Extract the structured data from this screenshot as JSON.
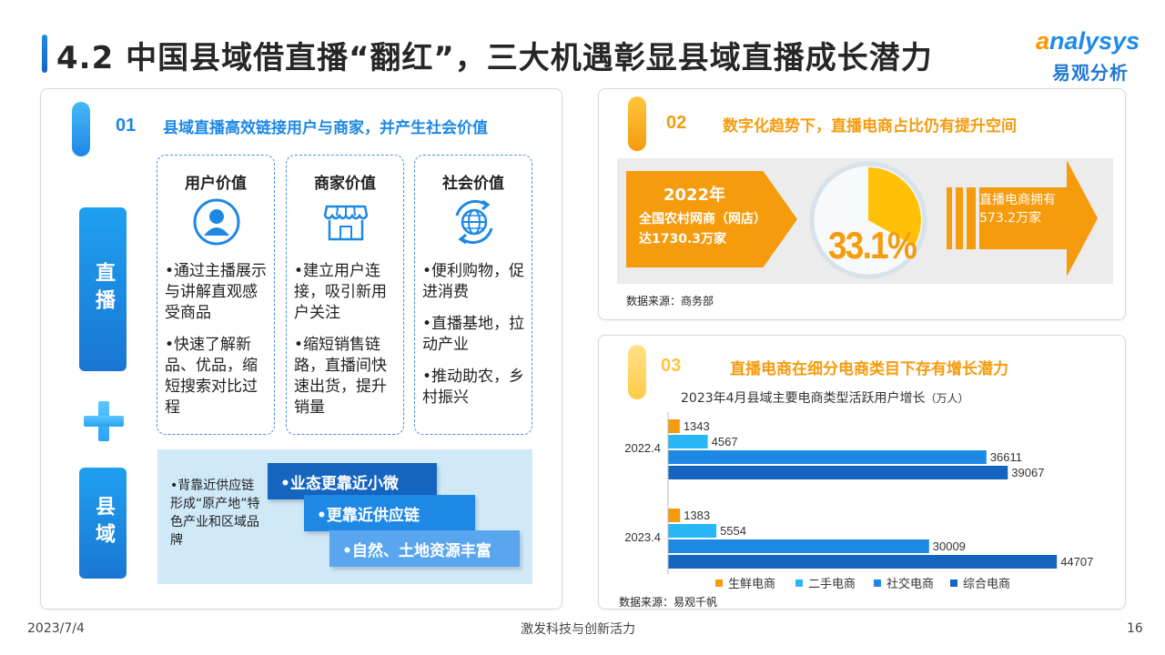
{
  "header": {
    "title": "4.2 中国县域借直播“翻红”，三大机遇彰显县域直播成长潜力",
    "brand_en_prefix": "a",
    "brand_en_rest": "nalysys",
    "brand_cn": "易观分析"
  },
  "section1": {
    "num": "01",
    "title": "县域直播高效链接用户与商家，并产生社会价值",
    "left_label_top": "直播",
    "left_label_bottom": "县域",
    "cards": [
      {
        "title": "用户价值",
        "icon": "user-icon",
        "items": [
          "•通过主播展示与讲解直观感受商品",
          "•快速了解新品、优品，缩短搜索对比过程"
        ]
      },
      {
        "title": "商家价值",
        "icon": "store-icon",
        "items": [
          "•建立用户连接，吸引新用户关注",
          "•缩短销售链路，直播间快速出货，提升销量"
        ]
      },
      {
        "title": "社会价值",
        "icon": "globe-icon",
        "items": [
          "•便利购物，促进消费",
          "•直播基地，拉动产业",
          "•推动助农，乡村振兴"
        ]
      }
    ],
    "county_text": "•背靠近供应链形成“原产地”特色产业和区域品牌",
    "tags": [
      "•业态更靠近小微",
      "•更靠近供应链",
      "•自然、土地资源丰富"
    ]
  },
  "section2": {
    "num": "02",
    "title": "数字化趋势下，直播电商占比仍有提升空间",
    "year": "2022年",
    "left_text": "全国农村网商（网店）达1730.3万家",
    "percent": "33.1%",
    "percent_value": 33.1,
    "right_text": "直播电商拥有573.2万家",
    "source": "数据来源：商务部"
  },
  "section3": {
    "num": "03",
    "title": "直播电商在细分电商类目下存有增长潜力",
    "source": "数据来源：易观千帆"
  },
  "chart_data": {
    "type": "bar",
    "orientation": "horizontal",
    "title": "2023年4月县域主要电商类型活跃用户增长",
    "unit": "（万人）",
    "categories": [
      "2022.4",
      "2023.4"
    ],
    "series": [
      {
        "name": "生鲜电商",
        "color": "#f59b0c",
        "values": [
          1343,
          1383
        ]
      },
      {
        "name": "二手电商",
        "color": "#29b6f6",
        "values": [
          4567,
          5554
        ]
      },
      {
        "name": "社交电商",
        "color": "#1e88e5",
        "values": [
          36611,
          30009
        ]
      },
      {
        "name": "综合电商",
        "color": "#1565c0",
        "values": [
          39067,
          44707
        ]
      }
    ],
    "xlim": [
      0,
      45000
    ],
    "grid": false,
    "legend": "bottom"
  },
  "colors": {
    "accent": "#1e88e5",
    "orange": "#f59b0c",
    "dark_blue": "#1565c0"
  },
  "footer": {
    "date": "2023/7/4",
    "center": "激发科技与创新活力",
    "page": "16"
  }
}
